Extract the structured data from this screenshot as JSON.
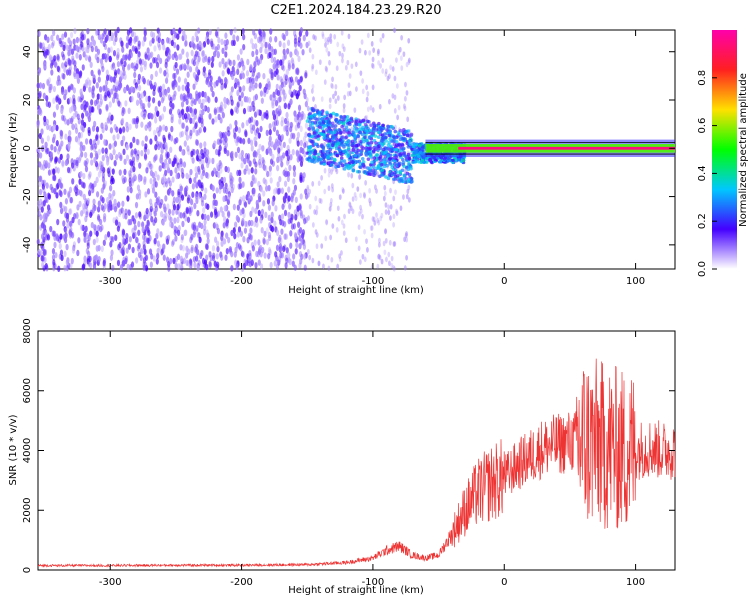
{
  "figure": {
    "title": "C2E1.2024.184.23.29.R20"
  },
  "colors": {
    "signal_line": "#ee3333",
    "spectrogram_noise": "#8a2be2",
    "frame": "#000000"
  },
  "chart_data": [
    {
      "type": "heatmap",
      "title": "C2E1.2024.184.23.29.R20",
      "xlabel": "Height of straight line (km)",
      "ylabel": "Frequency (Hz)",
      "xlim": [
        -355,
        130
      ],
      "ylim": [
        -50,
        49
      ],
      "x_ticks": [
        -300,
        -200,
        -100,
        0,
        100
      ],
      "y_ticks": [
        -40,
        -20,
        0,
        20,
        40
      ],
      "colorbar": {
        "label": "Normalized spectral amplitude",
        "range": [
          0.0,
          1.0
        ],
        "ticks": [
          "0.0",
          "0.2",
          "0.4",
          "0.6",
          "0.8"
        ],
        "colormap": [
          "#ffffff",
          "#4400ff",
          "#00c8ff",
          "#00ff00",
          "#ffe000",
          "#ff2020",
          "#ff00aa"
        ]
      },
      "regions": [
        {
          "name": "noise",
          "x_range": [
            -355,
            -150
          ],
          "freq_range": [
            -50,
            49
          ],
          "amplitude": 0.05
        },
        {
          "name": "onset",
          "x_range": [
            -150,
            -70
          ],
          "freq_range": [
            -10,
            12
          ],
          "amplitude": 0.3
        },
        {
          "name": "carrier",
          "x_range": [
            -60,
            130
          ],
          "freq_center": 0,
          "freq_width": 3,
          "amplitude": 0.95
        }
      ]
    },
    {
      "type": "line",
      "xlabel": "Height of straight line (km)",
      "ylabel": "SNR (10 * v/v)",
      "xlim": [
        -355,
        130
      ],
      "ylim": [
        0,
        8000
      ],
      "x_ticks": [
        -300,
        -200,
        -100,
        0,
        100
      ],
      "y_ticks": [
        0,
        2000,
        4000,
        6000,
        8000
      ],
      "x": [
        -355,
        -300,
        -250,
        -200,
        -150,
        -120,
        -100,
        -90,
        -80,
        -70,
        -60,
        -50,
        -40,
        -30,
        -20,
        -10,
        0,
        10,
        20,
        30,
        40,
        50,
        60,
        70,
        80,
        90,
        100,
        110,
        120,
        130
      ],
      "y": [
        150,
        150,
        160,
        160,
        180,
        250,
        400,
        650,
        800,
        500,
        400,
        500,
        1200,
        2000,
        2600,
        2900,
        3100,
        3500,
        3800,
        4100,
        4200,
        4300,
        4300,
        4200,
        4100,
        4000,
        4000,
        4100,
        4000,
        4000
      ],
      "annotations": [
        {
          "x": 95,
          "y": 8000,
          "text": ""
        }
      ]
    }
  ],
  "ticks_top": {
    "x": [
      "-300",
      "-200",
      "-100",
      "0",
      "100"
    ],
    "y": [
      "-40",
      "-20",
      "0",
      "20",
      "40"
    ]
  },
  "ticks_bottom": {
    "x": [
      "-300",
      "-200",
      "-100",
      "0",
      "100"
    ],
    "y": [
      "0",
      "2000",
      "4000",
      "6000",
      "8000"
    ]
  },
  "colorbar_ticks": [
    "0.0",
    "0.2",
    "0.4",
    "0.6",
    "0.8"
  ]
}
